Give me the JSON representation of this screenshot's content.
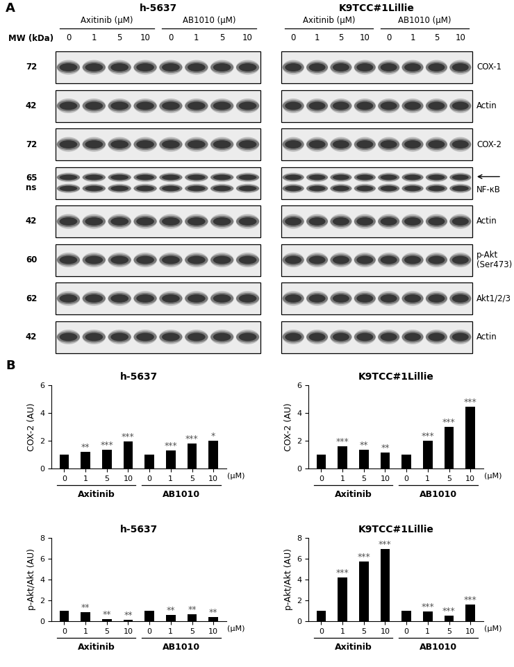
{
  "panel_A": {
    "label": "A",
    "mw_header": "MW (kDa)",
    "blots": [
      {
        "cell_line": "h-5637",
        "groups": [
          "Axitinib (µM)",
          "AB1010 (µM)"
        ],
        "lanes": [
          "0",
          "1",
          "5",
          "10",
          "0",
          "1",
          "5",
          "10"
        ]
      },
      {
        "cell_line": "K9TCC#1Lillie",
        "groups": [
          "Axitinib (µM)",
          "AB1010 (µM)"
        ],
        "lanes": [
          "0",
          "1",
          "5",
          "10",
          "0",
          "1",
          "5",
          "10"
        ]
      }
    ],
    "rows": [
      {
        "mw": [
          "72"
        ],
        "protein": [
          "COX-1"
        ]
      },
      {
        "mw": [
          "42"
        ],
        "protein": [
          "Actin"
        ]
      },
      {
        "mw": [
          "72"
        ],
        "protein": [
          "COX-2"
        ]
      },
      {
        "mw": [
          "65",
          "ns"
        ],
        "protein": [
          "NF-κB"
        ],
        "arrow": true
      },
      {
        "mw": [
          "42"
        ],
        "protein": [
          "Actin"
        ]
      },
      {
        "mw": [
          "60"
        ],
        "protein": [
          "p-Akt",
          "(Ser473)"
        ]
      },
      {
        "mw": [
          "62"
        ],
        "protein": [
          "Akt1/2/3"
        ]
      },
      {
        "mw": [
          "42"
        ],
        "protein": [
          "Actin"
        ]
      }
    ]
  },
  "panel_B": {
    "label": "B"
  },
  "chart_data": [
    {
      "type": "bar",
      "title": "h-5637",
      "y_label": "COX-2 (AU)",
      "categories": [
        "0",
        "1",
        "5",
        "10",
        "0",
        "1",
        "5",
        "10"
      ],
      "group_labels": [
        "Axitinib",
        "AB1010"
      ],
      "x_unit": "(µM)",
      "values": [
        1,
        1.18,
        1.35,
        1.95,
        1,
        1.3,
        1.8,
        2.0
      ],
      "significance": [
        null,
        "**",
        "***",
        "***",
        null,
        "***",
        "***",
        "*"
      ],
      "color": "#000000",
      "ylim": [
        0,
        6
      ],
      "yticks": [
        0,
        2,
        4,
        6
      ]
    },
    {
      "type": "bar",
      "title": "K9TCC#1Lillie",
      "y_label": "COX-2 (AU)",
      "categories": [
        "0",
        "1",
        "5",
        "10",
        "0",
        "1",
        "5",
        "10"
      ],
      "group_labels": [
        "Axitinib",
        "AB1010"
      ],
      "x_unit": "(µM)",
      "values": [
        1,
        1.6,
        1.35,
        1.15,
        1,
        2.0,
        3.0,
        4.45
      ],
      "significance": [
        null,
        "***",
        "**",
        "**",
        null,
        "***",
        "***",
        "***"
      ],
      "color": "#000000",
      "ylim": [
        0,
        6
      ],
      "yticks": [
        0,
        2,
        4,
        6
      ]
    },
    {
      "type": "bar",
      "title": "h-5637",
      "y_label": "p-Akt/Akt (AU)",
      "categories": [
        "0",
        "1",
        "5",
        "10",
        "0",
        "1",
        "5",
        "10"
      ],
      "group_labels": [
        "Axitinib",
        "AB1010"
      ],
      "x_unit": "(µM)",
      "values": [
        1,
        0.85,
        0.22,
        0.15,
        1,
        0.62,
        0.68,
        0.42
      ],
      "significance": [
        null,
        "**",
        "**",
        "**",
        null,
        "**",
        "**",
        "**"
      ],
      "color": "#000000",
      "ylim": [
        0,
        8
      ],
      "yticks": [
        0,
        2,
        4,
        6,
        8
      ]
    },
    {
      "type": "bar",
      "title": "K9TCC#1Lillie",
      "y_label": "p-Akt/Akt (AU)",
      "categories": [
        "0",
        "1",
        "5",
        "10",
        "0",
        "1",
        "5",
        "10"
      ],
      "group_labels": [
        "Axitinib",
        "AB1010"
      ],
      "x_unit": "(µM)",
      "values": [
        1,
        4.2,
        5.7,
        6.9,
        1,
        0.9,
        0.55,
        1.6
      ],
      "significance": [
        null,
        "***",
        "***",
        "***",
        null,
        "***",
        "***",
        "***"
      ],
      "color": "#000000",
      "ylim": [
        0,
        8
      ],
      "yticks": [
        0,
        2,
        4,
        6,
        8
      ]
    }
  ]
}
